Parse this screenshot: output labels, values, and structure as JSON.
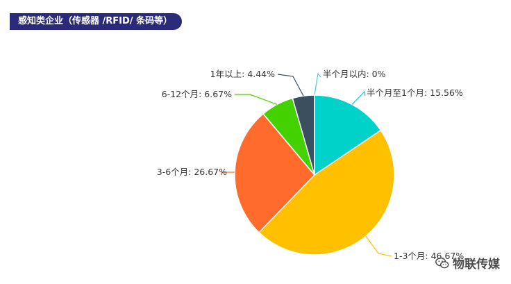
{
  "title": "感知类企业（传感器 /RFID/ 条码等）",
  "watermark": {
    "text": "物联传媒",
    "icon": "wechat-icon"
  },
  "chart_data": {
    "type": "pie",
    "slices": [
      {
        "label": "半个月以内",
        "percent": 0,
        "display": "半个月以内: 0%",
        "color": "#4fc3f7"
      },
      {
        "label": "半个月至1个月",
        "percent": 15.56,
        "display": "半个月至1个月: 15.56%",
        "color": "#00d1c9"
      },
      {
        "label": "1-3个月",
        "percent": 46.67,
        "display": "1-3个月: 46.67%",
        "color": "#ffc000"
      },
      {
        "label": "3-6个月",
        "percent": 26.67,
        "display": "3-6个月: 26.67%",
        "color": "#ff6b2c"
      },
      {
        "label": "6-12个月",
        "percent": 6.67,
        "display": "6-12个月: 6.67%",
        "color": "#44d100"
      },
      {
        "label": "1年以上",
        "percent": 4.44,
        "display": "1年以上: 4.44%",
        "color": "#3b4f5e"
      }
    ]
  }
}
